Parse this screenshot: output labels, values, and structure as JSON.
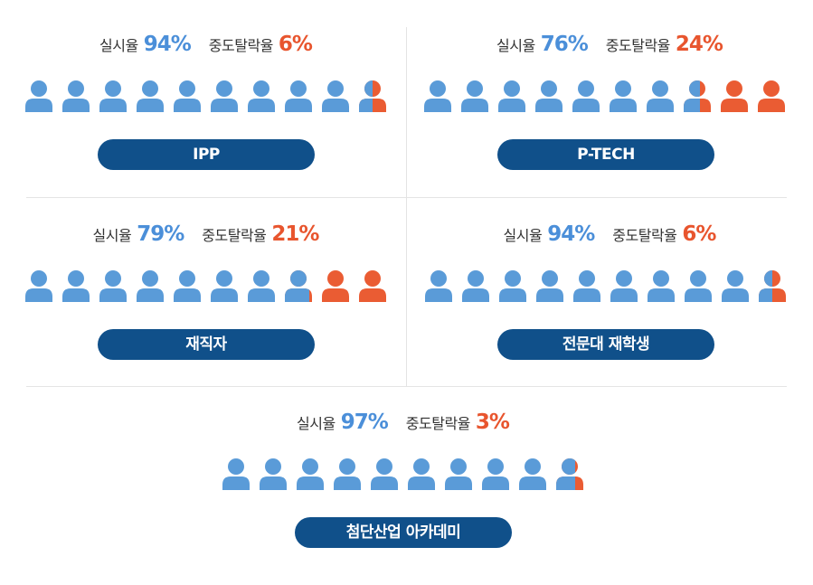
{
  "colors": {
    "accent_blue": "#4b8fd9",
    "accent_orange": "#e8552e",
    "icon_blue": "#5a9bd8",
    "icon_orange": "#ea5c33",
    "pill": "#10508a"
  },
  "labels": {
    "completion": "실시율",
    "dropout": "중도탈락율"
  },
  "icon": "person-icon",
  "chart_data": [
    {
      "type": "pictogram",
      "category": "IPP",
      "icons_total": 10,
      "series": [
        {
          "name": "실시율",
          "value": 94,
          "display": "94%"
        },
        {
          "name": "중도탈락율",
          "value": 6,
          "display": "6%"
        }
      ]
    },
    {
      "type": "pictogram",
      "category": "P-TECH",
      "icons_total": 10,
      "series": [
        {
          "name": "실시율",
          "value": 76,
          "display": "76%"
        },
        {
          "name": "중도탈락율",
          "value": 24,
          "display": "24%"
        }
      ]
    },
    {
      "type": "pictogram",
      "category": "재직자",
      "icons_total": 10,
      "series": [
        {
          "name": "실시율",
          "value": 79,
          "display": "79%"
        },
        {
          "name": "중도탈락율",
          "value": 21,
          "display": "21%"
        }
      ]
    },
    {
      "type": "pictogram",
      "category": "전문대 재학생",
      "icons_total": 10,
      "series": [
        {
          "name": "실시율",
          "value": 94,
          "display": "94%"
        },
        {
          "name": "중도탈락율",
          "value": 6,
          "display": "6%"
        }
      ]
    },
    {
      "type": "pictogram",
      "category": "첨단산업 아카데미",
      "icons_total": 10,
      "series": [
        {
          "name": "실시율",
          "value": 97,
          "display": "97%"
        },
        {
          "name": "중도탈락율",
          "value": 3,
          "display": "3%"
        }
      ]
    }
  ]
}
